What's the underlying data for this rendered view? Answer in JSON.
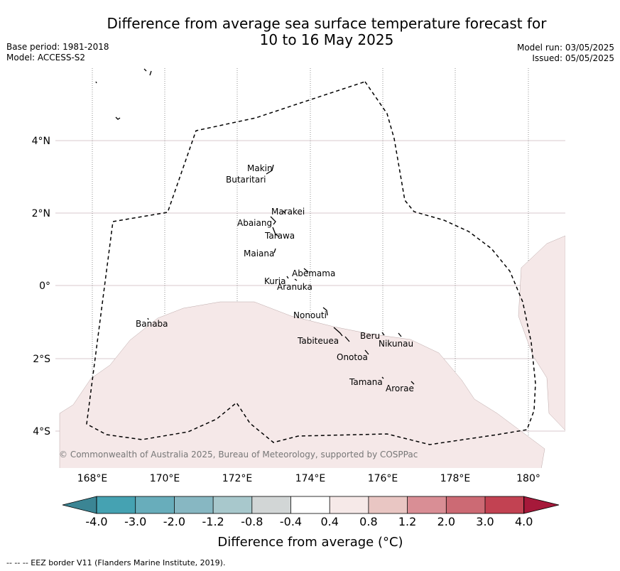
{
  "header": {
    "title_line1": "Difference from average sea surface temperature forecast for",
    "title_line2": "10 to 16 May 2025",
    "base_period": "Base period: 1981-2018",
    "model": "Model: ACCESS-S2",
    "model_run": "Model run: 03/05/2025",
    "issued": "Issued: 05/05/2025"
  },
  "map": {
    "lat_labels": [
      "4°N",
      "2°N",
      "0°",
      "2°S",
      "4°S"
    ],
    "lon_labels": [
      "168°E",
      "170°E",
      "172°E",
      "174°E",
      "176°E",
      "178°E",
      "180°"
    ],
    "copyright": "© Commonwealth of Australia 2025, Bureau of Meteorology, supported by COSPPac",
    "islands": [
      {
        "name": "Makin"
      },
      {
        "name": "Butaritari"
      },
      {
        "name": "Marakei"
      },
      {
        "name": "Abaiang"
      },
      {
        "name": "Tarawa"
      },
      {
        "name": "Maiana"
      },
      {
        "name": "Abemama"
      },
      {
        "name": "Kuria"
      },
      {
        "name": "Aranuka"
      },
      {
        "name": "Nonouti"
      },
      {
        "name": "Banaba"
      },
      {
        "name": "Beru"
      },
      {
        "name": "Nikunau"
      },
      {
        "name": "Tabiteuea"
      },
      {
        "name": "Onotoa"
      },
      {
        "name": "Tamana"
      },
      {
        "name": "Arorae"
      }
    ],
    "anomaly_fill_color": "#f5e8e8"
  },
  "colorbar": {
    "ticks": [
      "-4.0",
      "-3.0",
      "-2.0",
      "-1.2",
      "-0.8",
      "-0.4",
      "0.4",
      "0.8",
      "1.2",
      "2.0",
      "3.0",
      "4.0"
    ],
    "colors": [
      "#3b8594",
      "#45a2b2",
      "#68adbb",
      "#87b7c2",
      "#a8c8cc",
      "#d2d6d6",
      "#ffffff",
      "#f6e9e8",
      "#e9c6c3",
      "#d98e95",
      "#cc6a74",
      "#c24252",
      "#a6193a"
    ],
    "label": "Difference from average (°C)"
  },
  "footer": {
    "eez_note": "--  --  -- EEZ border V11 (Flanders Marine Institute, 2019)."
  }
}
